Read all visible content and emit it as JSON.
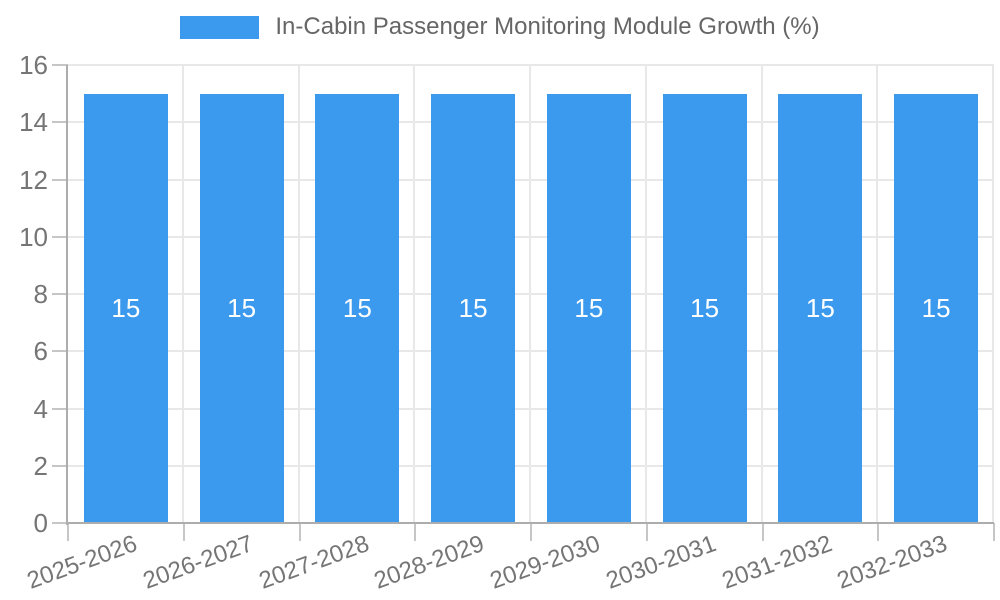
{
  "chart_data": {
    "type": "bar",
    "title": "In-Cabin Passenger Monitoring Module Growth (%)",
    "categories": [
      "2025-2026",
      "2026-2027",
      "2027-2028",
      "2028-2029",
      "2029-2030",
      "2030-2031",
      "2031-2032",
      "2032-2033"
    ],
    "series": [
      {
        "name": "In-Cabin Passenger Monitoring Module Growth (%)",
        "values": [
          15,
          15,
          15,
          15,
          15,
          15,
          15,
          15
        ]
      }
    ],
    "bar_value_labels": [
      "15",
      "15",
      "15",
      "15",
      "15",
      "15",
      "15",
      "15"
    ],
    "xlabel": "",
    "ylabel": "",
    "ylim": [
      0,
      16
    ],
    "yticks": [
      0,
      2,
      4,
      6,
      8,
      10,
      12,
      14,
      16
    ],
    "grid": true,
    "legend_position": "top",
    "bar_color": "#3B9AEE",
    "bar_label_color": "#ffffff",
    "grid_color": "#E8E8E8",
    "axis_color": "#ADADAD",
    "tick_color": "#C6C6C6",
    "axis_text_color": "#757575",
    "title_color": "#666666"
  }
}
